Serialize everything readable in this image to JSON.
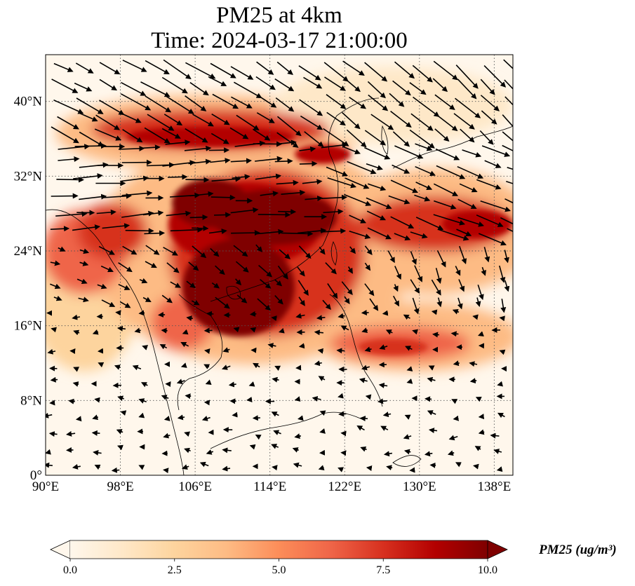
{
  "title": {
    "line1": "PM25 at 4km",
    "line2": "Time: 2024-03-17 21:00:00"
  },
  "map": {
    "projection": "PlateCarree",
    "lon_range": [
      90,
      140
    ],
    "lat_range": [
      0,
      45
    ],
    "gridlines": true,
    "gridline_style": "dotted",
    "lon_ticks": [
      {
        "value": 90,
        "label": "90°E"
      },
      {
        "value": 98,
        "label": "98°E"
      },
      {
        "value": 106,
        "label": "106°E"
      },
      {
        "value": 114,
        "label": "114°E"
      },
      {
        "value": 122,
        "label": "122°E"
      },
      {
        "value": 130,
        "label": "130°E"
      },
      {
        "value": 138,
        "label": "138°E"
      }
    ],
    "lat_ticks": [
      {
        "value": 0,
        "label": "0°"
      },
      {
        "value": 8,
        "label": "8°N"
      },
      {
        "value": 16,
        "label": "16°N"
      },
      {
        "value": 24,
        "label": "24°N"
      },
      {
        "value": 32,
        "label": "32°N"
      },
      {
        "value": 40,
        "label": "40°N"
      }
    ],
    "variable": "PM25",
    "overlay": "wind vectors",
    "high_concentration_regions": [
      {
        "name": "south-china-plume",
        "lon": [
          105,
          121
        ],
        "lat": [
          14,
          31
        ],
        "level": "high"
      },
      {
        "name": "northern-band",
        "lon": [
          96,
          122
        ],
        "lat": [
          33,
          39
        ],
        "level": "high"
      },
      {
        "name": "east-plume",
        "lon": [
          120,
          140
        ],
        "lat": [
          23,
          30
        ],
        "level": "medium-high"
      },
      {
        "name": "philippine-sea-band",
        "lon": [
          123,
          134
        ],
        "lat": [
          12,
          17
        ],
        "level": "medium"
      }
    ]
  },
  "colorbar": {
    "title": "PM25 (ug/m³)",
    "min": 0.0,
    "max": 10.0,
    "extend": "both",
    "colormap": "OrRd",
    "colors": [
      "#fff7ec",
      "#fee8c8",
      "#fdd49e",
      "#fdbb84",
      "#fc8d59",
      "#ef6548",
      "#d7301f",
      "#b30000",
      "#7f0000"
    ],
    "ticks": [
      {
        "value": 0.0,
        "label": "0.0"
      },
      {
        "value": 2.5,
        "label": "2.5"
      },
      {
        "value": 5.0,
        "label": "5.0"
      },
      {
        "value": 7.5,
        "label": "7.5"
      },
      {
        "value": 10.0,
        "label": "10.0"
      }
    ]
  }
}
